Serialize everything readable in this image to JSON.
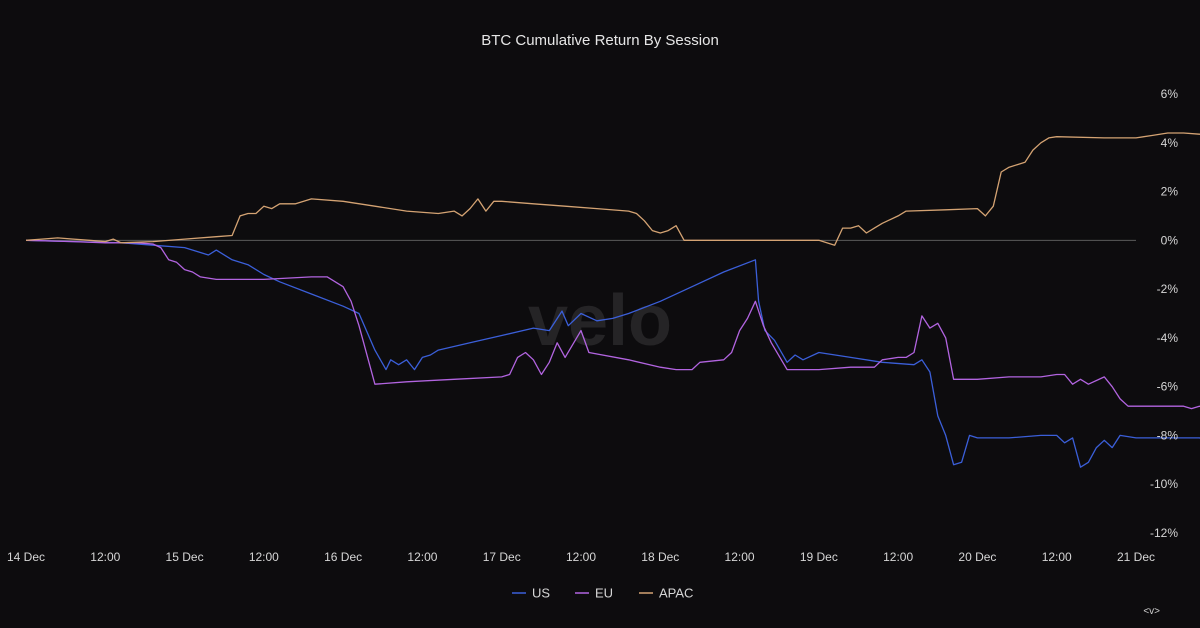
{
  "chart_data": {
    "type": "line",
    "title": "BTC Cumulative Return By Session",
    "xlabel": "",
    "ylabel": "",
    "x_ticks": [
      "14 Dec",
      "12:00",
      "15 Dec",
      "12:00",
      "16 Dec",
      "12:00",
      "17 Dec",
      "12:00",
      "18 Dec",
      "12:00",
      "19 Dec",
      "12:00",
      "20 Dec",
      "12:00",
      "21 Dec"
    ],
    "x_range_days": [
      0,
      7
    ],
    "y_ticks": [
      "6%",
      "4%",
      "2%",
      "0%",
      "-2%",
      "-4%",
      "-6%",
      "-8%",
      "-10%",
      "-12%"
    ],
    "ylim": [
      -12,
      6
    ],
    "y_axis_side": "right",
    "zero_line": true,
    "grid": false,
    "legend_position": "bottom-center",
    "series": [
      {
        "name": "US",
        "color": "#3b5fd9",
        "points": [
          [
            0,
            0
          ],
          [
            0.3,
            -0.05
          ],
          [
            0.6,
            -0.1
          ],
          [
            0.8,
            -0.2
          ],
          [
            1.0,
            -0.3
          ],
          [
            1.1,
            -0.5
          ],
          [
            1.15,
            -0.6
          ],
          [
            1.2,
            -0.4
          ],
          [
            1.3,
            -0.8
          ],
          [
            1.4,
            -1.0
          ],
          [
            1.5,
            -1.4
          ],
          [
            1.6,
            -1.7
          ],
          [
            1.8,
            -2.2
          ],
          [
            2.0,
            -2.7
          ],
          [
            2.1,
            -3.0
          ],
          [
            2.2,
            -4.5
          ],
          [
            2.27,
            -5.3
          ],
          [
            2.3,
            -4.9
          ],
          [
            2.35,
            -5.1
          ],
          [
            2.4,
            -4.9
          ],
          [
            2.45,
            -5.3
          ],
          [
            2.5,
            -4.8
          ],
          [
            2.55,
            -4.7
          ],
          [
            2.6,
            -4.5
          ],
          [
            2.8,
            -4.2
          ],
          [
            3.0,
            -3.9
          ],
          [
            3.2,
            -3.6
          ],
          [
            3.3,
            -3.7
          ],
          [
            3.38,
            -2.9
          ],
          [
            3.42,
            -3.5
          ],
          [
            3.5,
            -3.0
          ],
          [
            3.6,
            -3.3
          ],
          [
            3.7,
            -3.2
          ],
          [
            3.8,
            -3.0
          ],
          [
            4.0,
            -2.5
          ],
          [
            4.2,
            -1.9
          ],
          [
            4.4,
            -1.3
          ],
          [
            4.6,
            -0.8
          ],
          [
            4.62,
            -2.5
          ],
          [
            4.66,
            -3.7
          ],
          [
            4.72,
            -4.1
          ],
          [
            4.8,
            -5.0
          ],
          [
            4.85,
            -4.7
          ],
          [
            4.9,
            -4.9
          ],
          [
            5.0,
            -4.6
          ],
          [
            5.2,
            -4.8
          ],
          [
            5.4,
            -5.0
          ],
          [
            5.6,
            -5.1
          ],
          [
            5.65,
            -4.9
          ],
          [
            5.7,
            -5.4
          ],
          [
            5.75,
            -7.2
          ],
          [
            5.8,
            -8.0
          ],
          [
            5.85,
            -9.2
          ],
          [
            5.9,
            -9.1
          ],
          [
            5.95,
            -8.0
          ],
          [
            6.0,
            -8.1
          ],
          [
            6.2,
            -8.1
          ],
          [
            6.4,
            -8.0
          ],
          [
            6.5,
            -8.0
          ],
          [
            6.55,
            -8.3
          ],
          [
            6.6,
            -8.1
          ],
          [
            6.65,
            -9.3
          ],
          [
            6.7,
            -9.1
          ],
          [
            6.75,
            -8.5
          ],
          [
            6.8,
            -8.2
          ],
          [
            6.85,
            -8.5
          ],
          [
            6.9,
            -8.0
          ],
          [
            7.0,
            -8.1
          ],
          [
            7.2,
            -8.1
          ],
          [
            7.4,
            -8.1
          ],
          [
            7.45,
            -8.2
          ],
          [
            7.5,
            -8.2
          ]
        ]
      },
      {
        "name": "EU",
        "color": "#b264e0",
        "points": [
          [
            0,
            0
          ],
          [
            0.3,
            -0.05
          ],
          [
            0.5,
            -0.1
          ],
          [
            0.7,
            -0.1
          ],
          [
            0.8,
            -0.15
          ],
          [
            0.85,
            -0.3
          ],
          [
            0.9,
            -0.8
          ],
          [
            0.95,
            -0.9
          ],
          [
            1.0,
            -1.2
          ],
          [
            1.05,
            -1.3
          ],
          [
            1.1,
            -1.5
          ],
          [
            1.2,
            -1.6
          ],
          [
            1.5,
            -1.6
          ],
          [
            1.8,
            -1.5
          ],
          [
            1.9,
            -1.5
          ],
          [
            1.95,
            -1.7
          ],
          [
            2.0,
            -1.9
          ],
          [
            2.05,
            -2.5
          ],
          [
            2.1,
            -3.5
          ],
          [
            2.2,
            -5.9
          ],
          [
            2.4,
            -5.8
          ],
          [
            2.7,
            -5.7
          ],
          [
            3.0,
            -5.6
          ],
          [
            3.05,
            -5.5
          ],
          [
            3.1,
            -4.8
          ],
          [
            3.15,
            -4.6
          ],
          [
            3.2,
            -4.9
          ],
          [
            3.25,
            -5.5
          ],
          [
            3.3,
            -5.0
          ],
          [
            3.35,
            -4.2
          ],
          [
            3.4,
            -4.8
          ],
          [
            3.5,
            -3.7
          ],
          [
            3.55,
            -4.6
          ],
          [
            3.8,
            -4.9
          ],
          [
            4.0,
            -5.2
          ],
          [
            4.1,
            -5.3
          ],
          [
            4.2,
            -5.3
          ],
          [
            4.25,
            -5.0
          ],
          [
            4.4,
            -4.9
          ],
          [
            4.45,
            -4.6
          ],
          [
            4.5,
            -3.7
          ],
          [
            4.55,
            -3.2
          ],
          [
            4.6,
            -2.5
          ],
          [
            4.65,
            -3.5
          ],
          [
            4.7,
            -4.2
          ],
          [
            4.8,
            -5.3
          ],
          [
            5.0,
            -5.3
          ],
          [
            5.2,
            -5.2
          ],
          [
            5.35,
            -5.2
          ],
          [
            5.4,
            -4.9
          ],
          [
            5.5,
            -4.8
          ],
          [
            5.55,
            -4.8
          ],
          [
            5.6,
            -4.6
          ],
          [
            5.65,
            -3.1
          ],
          [
            5.7,
            -3.6
          ],
          [
            5.75,
            -3.4
          ],
          [
            5.8,
            -4.0
          ],
          [
            5.85,
            -5.7
          ],
          [
            6.0,
            -5.7
          ],
          [
            6.2,
            -5.6
          ],
          [
            6.4,
            -5.6
          ],
          [
            6.5,
            -5.5
          ],
          [
            6.55,
            -5.5
          ],
          [
            6.6,
            -5.9
          ],
          [
            6.65,
            -5.7
          ],
          [
            6.7,
            -5.9
          ],
          [
            6.8,
            -5.6
          ],
          [
            6.85,
            -6.0
          ],
          [
            6.9,
            -6.5
          ],
          [
            6.95,
            -6.8
          ],
          [
            7.2,
            -6.8
          ],
          [
            7.3,
            -6.8
          ],
          [
            7.35,
            -6.9
          ],
          [
            7.4,
            -6.8
          ],
          [
            7.45,
            -6.9
          ],
          [
            7.5,
            -6.9
          ]
        ]
      },
      {
        "name": "APAC",
        "color": "#d4a373",
        "points": [
          [
            0,
            0
          ],
          [
            0.1,
            0.05
          ],
          [
            0.2,
            0.1
          ],
          [
            0.3,
            0.05
          ],
          [
            0.4,
            0
          ],
          [
            0.5,
            -0.05
          ],
          [
            0.55,
            0.05
          ],
          [
            0.6,
            -0.1
          ],
          [
            0.8,
            -0.05
          ],
          [
            1.0,
            0.05
          ],
          [
            1.2,
            0.15
          ],
          [
            1.3,
            0.2
          ],
          [
            1.35,
            1.0
          ],
          [
            1.4,
            1.1
          ],
          [
            1.45,
            1.1
          ],
          [
            1.5,
            1.4
          ],
          [
            1.55,
            1.3
          ],
          [
            1.6,
            1.5
          ],
          [
            1.7,
            1.5
          ],
          [
            1.8,
            1.7
          ],
          [
            2.0,
            1.6
          ],
          [
            2.2,
            1.4
          ],
          [
            2.4,
            1.2
          ],
          [
            2.6,
            1.1
          ],
          [
            2.7,
            1.2
          ],
          [
            2.75,
            1.0
          ],
          [
            2.8,
            1.3
          ],
          [
            2.85,
            1.7
          ],
          [
            2.9,
            1.2
          ],
          [
            2.95,
            1.6
          ],
          [
            3.0,
            1.6
          ],
          [
            3.2,
            1.5
          ],
          [
            3.4,
            1.4
          ],
          [
            3.6,
            1.3
          ],
          [
            3.8,
            1.2
          ],
          [
            3.85,
            1.1
          ],
          [
            3.9,
            0.8
          ],
          [
            3.95,
            0.4
          ],
          [
            4.0,
            0.3
          ],
          [
            4.05,
            0.4
          ],
          [
            4.1,
            0.6
          ],
          [
            4.15,
            0
          ],
          [
            4.3,
            0
          ],
          [
            4.5,
            0
          ],
          [
            4.7,
            0
          ],
          [
            4.9,
            0
          ],
          [
            5.0,
            0
          ],
          [
            5.1,
            -0.2
          ],
          [
            5.15,
            0.5
          ],
          [
            5.2,
            0.5
          ],
          [
            5.25,
            0.6
          ],
          [
            5.3,
            0.3
          ],
          [
            5.35,
            0.5
          ],
          [
            5.4,
            0.7
          ],
          [
            5.5,
            1.0
          ],
          [
            5.55,
            1.2
          ],
          [
            5.8,
            1.25
          ],
          [
            6.0,
            1.3
          ],
          [
            6.05,
            1.0
          ],
          [
            6.1,
            1.4
          ],
          [
            6.15,
            2.8
          ],
          [
            6.2,
            3.0
          ],
          [
            6.25,
            3.1
          ],
          [
            6.3,
            3.2
          ],
          [
            6.35,
            3.7
          ],
          [
            6.4,
            4.0
          ],
          [
            6.45,
            4.2
          ],
          [
            6.5,
            4.25
          ],
          [
            6.8,
            4.2
          ],
          [
            7.0,
            4.2
          ],
          [
            7.1,
            4.3
          ],
          [
            7.2,
            4.4
          ],
          [
            7.3,
            4.4
          ],
          [
            7.4,
            4.35
          ],
          [
            7.42,
            4.35
          ]
        ]
      }
    ]
  },
  "watermark": "velo",
  "corner_label": "<v>"
}
